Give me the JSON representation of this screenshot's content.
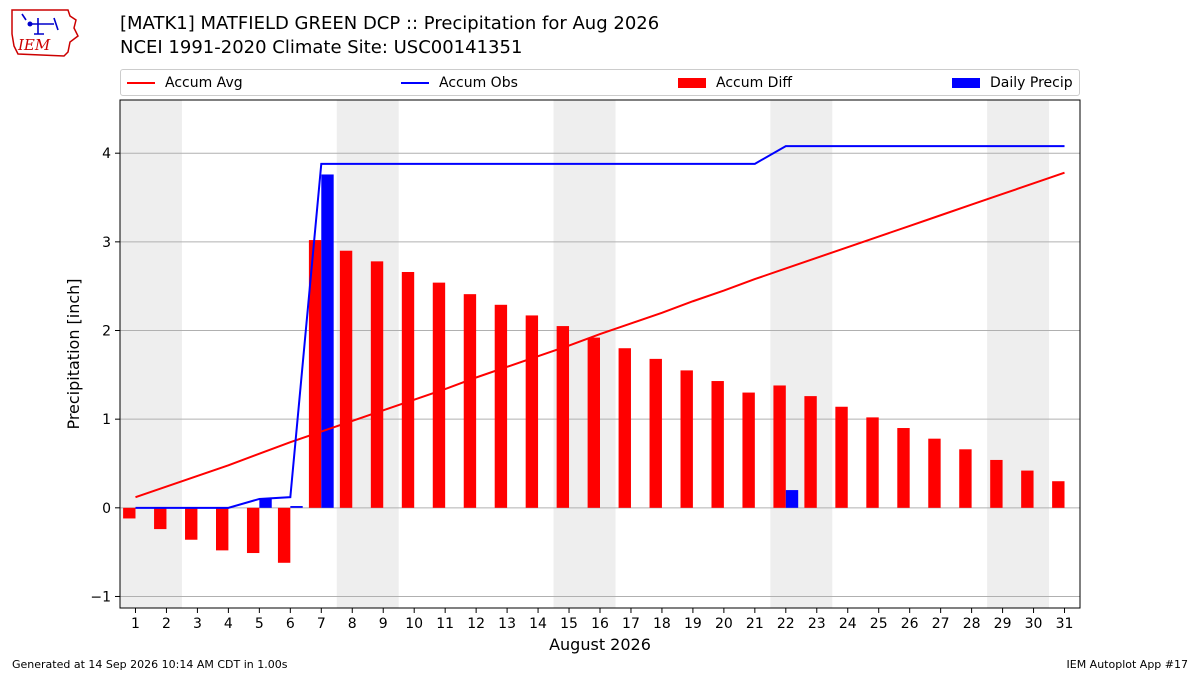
{
  "logo": {
    "text": "IEM",
    "color": "#cc0000",
    "accent": "#0000cc"
  },
  "title": {
    "line1": "[MATK1] MATFIELD GREEN DCP :: Precipitation for Aug 2026",
    "line2": "NCEI 1991-2020 Climate Site: USC00141351"
  },
  "legend": {
    "accum_avg": "Accum Avg",
    "accum_obs": "Accum Obs",
    "accum_diff": "Accum Diff",
    "daily_precip": "Daily Precip"
  },
  "footer": {
    "left": "Generated at 14 Sep 2026 10:14 AM CDT in 1.00s",
    "right": "IEM Autoplot App #17"
  },
  "colors": {
    "avg": "#ff0000",
    "obs": "#0000ff",
    "diff": "#ff0000",
    "daily": "#0000ff",
    "weekend": "#eeeeee",
    "grid": "#b0b0b0"
  },
  "chart_data": {
    "type": "bar",
    "title": "[MATK1] MATFIELD GREEN DCP :: Precipitation for Aug 2026",
    "xlabel": "August 2026",
    "ylabel": "Precipitation [inch]",
    "ylim": [
      -1.13,
      4.6
    ],
    "xlim": [
      0.5,
      31.5
    ],
    "yticks": [
      -1,
      0,
      1,
      2,
      3,
      4
    ],
    "grid": true,
    "legend_position": "top",
    "weekend_bands": [
      [
        0.5,
        2.5
      ],
      [
        7.5,
        9.5
      ],
      [
        14.5,
        16.5
      ],
      [
        21.5,
        23.5
      ],
      [
        28.5,
        30.5
      ]
    ],
    "x": [
      1,
      2,
      3,
      4,
      5,
      6,
      7,
      8,
      9,
      10,
      11,
      12,
      13,
      14,
      15,
      16,
      17,
      18,
      19,
      20,
      21,
      22,
      23,
      24,
      25,
      26,
      27,
      28,
      29,
      30,
      31
    ],
    "series": [
      {
        "name": "Accum Avg",
        "type": "line",
        "values": [
          0.12,
          0.24,
          0.36,
          0.48,
          0.61,
          0.74,
          0.86,
          0.98,
          1.1,
          1.22,
          1.34,
          1.47,
          1.59,
          1.71,
          1.83,
          1.96,
          2.08,
          2.2,
          2.33,
          2.45,
          2.58,
          2.7,
          2.82,
          2.94,
          3.06,
          3.18,
          3.3,
          3.42,
          3.54,
          3.66,
          3.78
        ]
      },
      {
        "name": "Accum Obs",
        "type": "line",
        "values": [
          0.0,
          0.0,
          0.0,
          0.0,
          0.1,
          0.12,
          3.88,
          3.88,
          3.88,
          3.88,
          3.88,
          3.88,
          3.88,
          3.88,
          3.88,
          3.88,
          3.88,
          3.88,
          3.88,
          3.88,
          3.88,
          4.08,
          4.08,
          4.08,
          4.08,
          4.08,
          4.08,
          4.08,
          4.08,
          4.08,
          4.08
        ]
      },
      {
        "name": "Accum Diff",
        "type": "bar",
        "values": [
          -0.12,
          -0.24,
          -0.36,
          -0.48,
          -0.51,
          -0.62,
          3.02,
          2.9,
          2.78,
          2.66,
          2.54,
          2.41,
          2.29,
          2.17,
          2.05,
          1.92,
          1.8,
          1.68,
          1.55,
          1.43,
          1.3,
          1.38,
          1.26,
          1.14,
          1.02,
          0.9,
          0.78,
          0.66,
          0.54,
          0.42,
          0.3
        ]
      },
      {
        "name": "Daily Precip",
        "type": "bar",
        "values": [
          0,
          0,
          0,
          0,
          0.1,
          0.02,
          3.76,
          0,
          0,
          0,
          0,
          0,
          0,
          0,
          0,
          0,
          0,
          0,
          0,
          0,
          0,
          0.2,
          0,
          0,
          0,
          0,
          0,
          0,
          0,
          0,
          0
        ]
      }
    ]
  }
}
